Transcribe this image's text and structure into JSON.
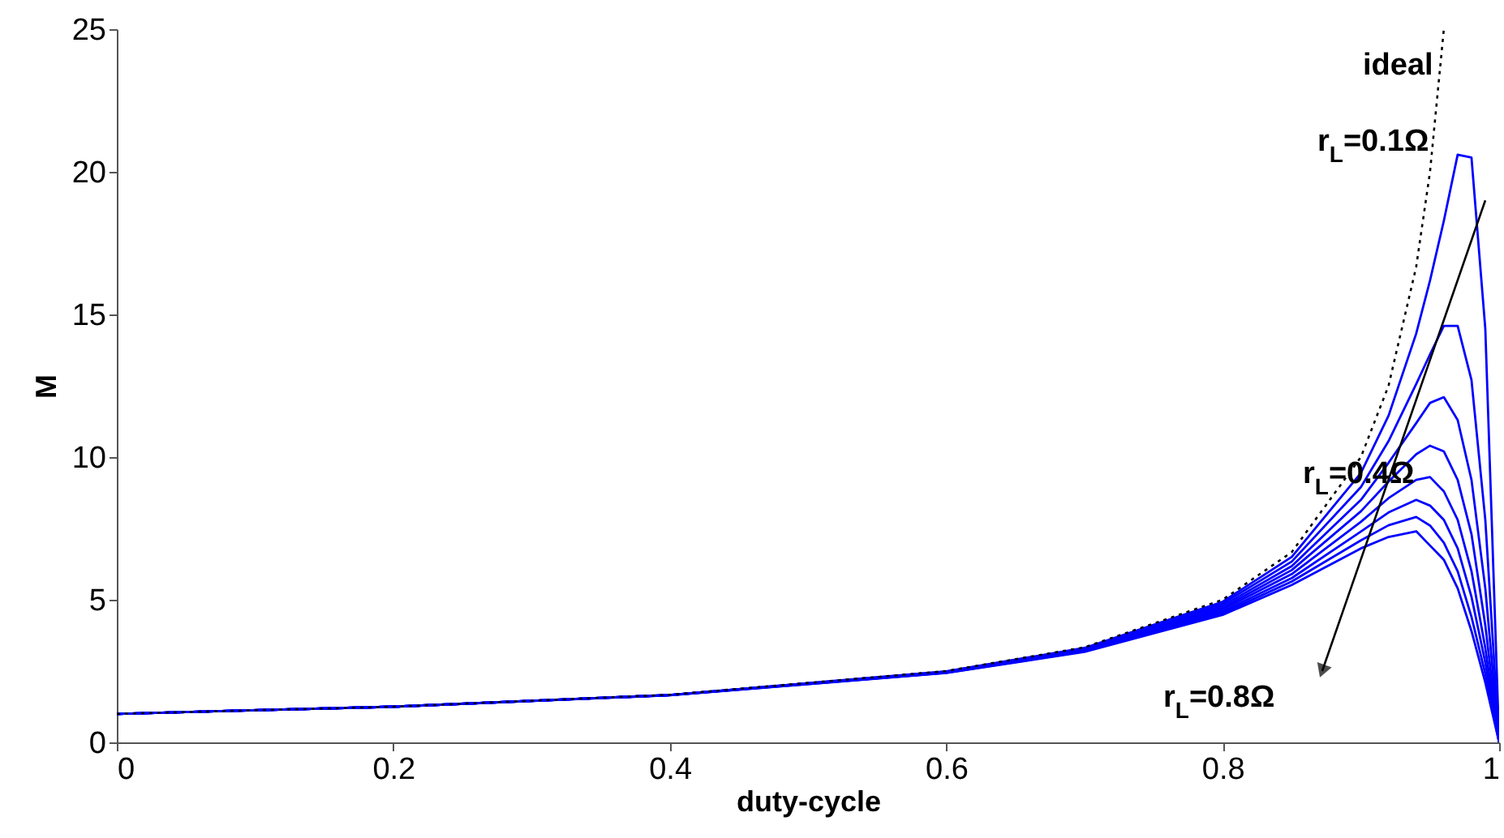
{
  "chart_data": {
    "type": "line",
    "xlabel": "duty-cycle",
    "ylabel": "M",
    "xlim": [
      0,
      1
    ],
    "ylim": [
      0,
      25
    ],
    "xticks": [
      0,
      0.2,
      0.4,
      0.6,
      0.8,
      1
    ],
    "yticks": [
      0,
      5,
      10,
      15,
      20,
      25
    ],
    "grid": false,
    "marker": "none",
    "x": [
      0,
      0.2,
      0.4,
      0.6,
      0.7,
      0.8,
      0.85,
      0.9,
      0.92,
      0.94,
      0.95,
      0.96,
      0.97,
      0.98,
      0.99,
      1
    ],
    "series": [
      {
        "color": "#000000",
        "line_style": "dotted",
        "x": [
          0,
          0.2,
          0.4,
          0.6,
          0.7,
          0.8,
          0.85,
          0.9,
          0.92,
          0.94,
          0.95,
          0.96
        ],
        "values": [
          1,
          1.25,
          1.67,
          2.5,
          3.33,
          5,
          6.67,
          10,
          12.5,
          16.67,
          20,
          25
        ]
      },
      {
        "color": "#0000ff",
        "line_style": "solid",
        "values": [
          1,
          1.25,
          1.66,
          2.49,
          3.31,
          4.93,
          6.5,
          9.44,
          11.45,
          14.33,
          16.19,
          18.28,
          20.6,
          20.5,
          14.5,
          0
        ]
      },
      {
        "color": "#0000ff",
        "line_style": "solid",
        "values": [
          1,
          1.25,
          1.66,
          2.48,
          3.29,
          4.86,
          6.34,
          8.95,
          10.56,
          12.56,
          13.6,
          14.6,
          14.6,
          12.7,
          7.8,
          0
        ]
      },
      {
        "color": "#0000ff",
        "line_style": "solid",
        "values": [
          1,
          1.25,
          1.66,
          2.47,
          3.27,
          4.79,
          6.18,
          8.5,
          9.8,
          11.19,
          11.9,
          12.1,
          11.3,
          9.2,
          5.4,
          0
        ]
      },
      {
        "color": "#0000ff",
        "line_style": "solid",
        "values": [
          1,
          1.25,
          1.66,
          2.46,
          3.25,
          4.72,
          6.04,
          8.1,
          9.14,
          10.1,
          10.4,
          10.2,
          9.2,
          7.3,
          4.1,
          0
        ]
      },
      {
        "color": "#0000ff",
        "line_style": "solid",
        "values": [
          1,
          1.25,
          1.66,
          2.45,
          3.23,
          4.66,
          5.9,
          7.73,
          8.56,
          9.2,
          9.3,
          8.8,
          7.8,
          6.0,
          3.3,
          0
        ]
      },
      {
        "color": "#0000ff",
        "line_style": "solid",
        "values": [
          1,
          1.25,
          1.66,
          2.45,
          3.21,
          4.59,
          5.76,
          7.39,
          8.06,
          8.5,
          8.3,
          7.8,
          6.8,
          5.1,
          2.8,
          0
        ]
      },
      {
        "color": "#0000ff",
        "line_style": "solid",
        "values": [
          1,
          1.25,
          1.65,
          2.44,
          3.19,
          4.53,
          5.64,
          7.08,
          7.61,
          7.9,
          7.6,
          7.0,
          6.0,
          4.4,
          2.4,
          0
        ]
      },
      {
        "color": "#0000ff",
        "line_style": "solid",
        "values": [
          1,
          1.25,
          1.65,
          2.43,
          3.17,
          4.47,
          5.52,
          6.8,
          7.2,
          7.4,
          6.9,
          6.4,
          5.4,
          3.9,
          2.1,
          0
        ]
      }
    ],
    "annotations": [
      "ideal",
      "r$_{L}$=0.1Ω",
      "r$_{L}$=0.4Ω",
      "r$_{L}$=0.8Ω"
    ]
  }
}
